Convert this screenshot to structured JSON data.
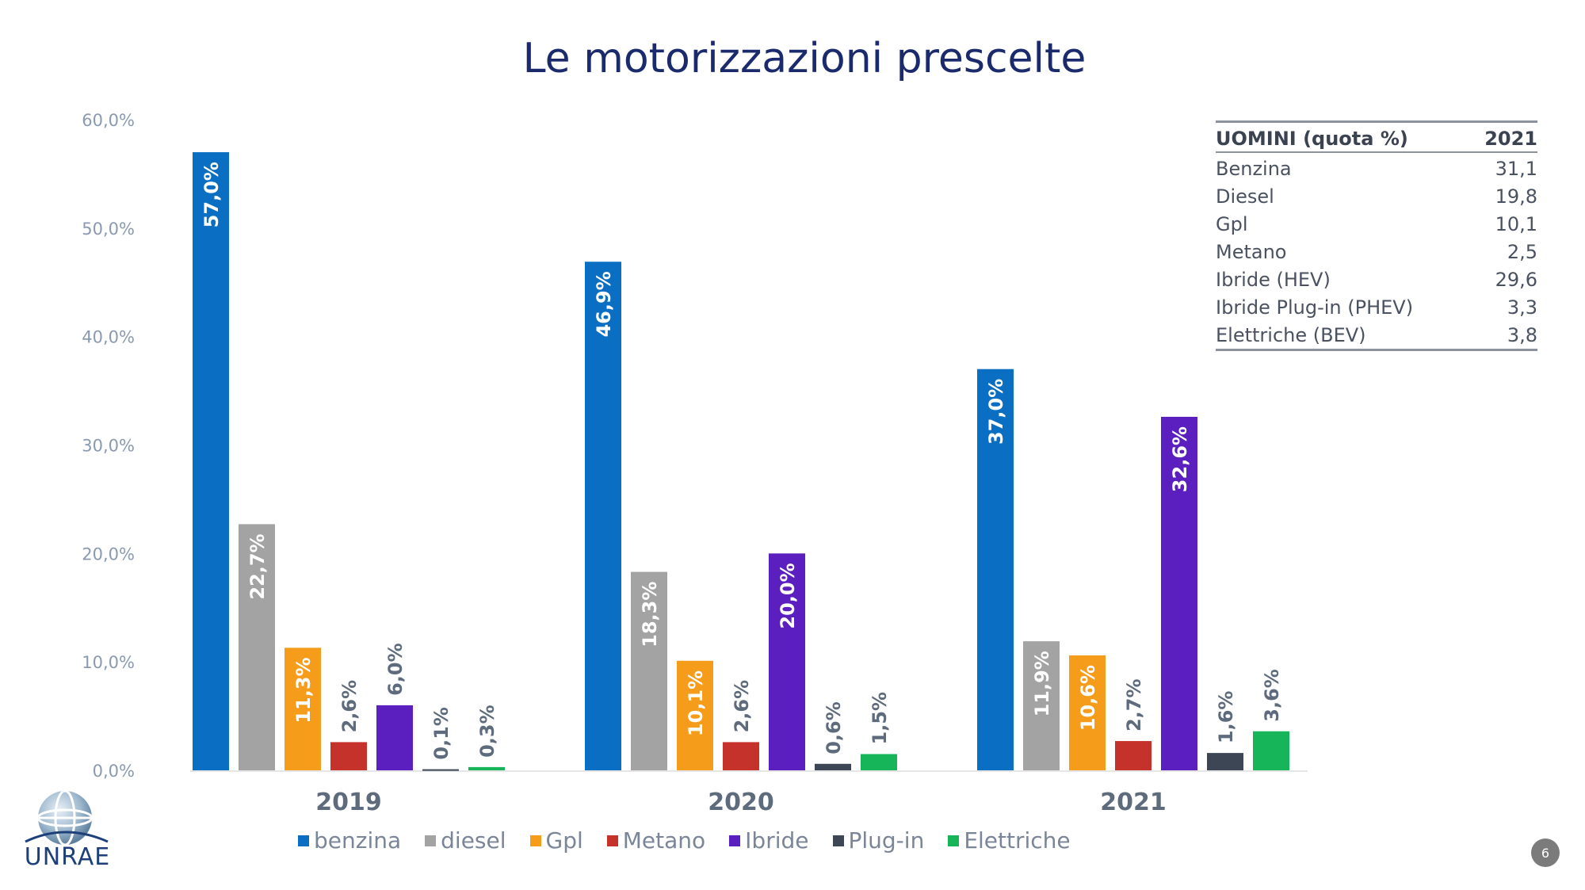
{
  "chart_data": {
    "type": "bar",
    "title": "Le motorizzazioni prescelte",
    "categories": [
      "2019",
      "2020",
      "2021"
    ],
    "ylim": [
      0,
      60
    ],
    "yticks": [
      "0,0%",
      "10,0%",
      "20,0%",
      "30,0%",
      "40,0%",
      "50,0%",
      "60,0%"
    ],
    "legend_position": "bottom",
    "grid": false,
    "series": [
      {
        "name": "benzina",
        "color": "#0a6fc2",
        "values": [
          57.0,
          46.9,
          37.0
        ],
        "labels": [
          "57,0%",
          "46,9%",
          "37,0%"
        ]
      },
      {
        "name": "diesel",
        "color": "#a3a3a3",
        "values": [
          22.7,
          18.3,
          11.9
        ],
        "labels": [
          "22,7%",
          "18,3%",
          "11,9%"
        ]
      },
      {
        "name": "Gpl",
        "color": "#f59c1a",
        "values": [
          11.3,
          10.1,
          10.6
        ],
        "labels": [
          "11,3%",
          "10,1%",
          "10,6%"
        ]
      },
      {
        "name": "Metano",
        "color": "#c4322b",
        "values": [
          2.6,
          2.6,
          2.7
        ],
        "labels": [
          "2,6%",
          "2,6%",
          "2,7%"
        ]
      },
      {
        "name": "Ibride",
        "color": "#5b1fbf",
        "values": [
          6.0,
          20.0,
          32.6
        ],
        "labels": [
          "6,0%",
          "20,0%",
          "32,6%"
        ]
      },
      {
        "name": "Plug-in",
        "color": "#3c4654",
        "values": [
          0.1,
          0.6,
          1.6
        ],
        "labels": [
          "0,1%",
          "0,6%",
          "1,6%"
        ]
      },
      {
        "name": "Elettriche",
        "color": "#17b55a",
        "values": [
          0.3,
          1.5,
          3.6
        ],
        "labels": [
          "0,3%",
          "1,5%",
          "3,6%"
        ]
      }
    ]
  },
  "stats_table": {
    "header_label": "UOMINI (quota %)",
    "header_year": "2021",
    "rows": [
      {
        "label": "Benzina",
        "value": "31,1"
      },
      {
        "label": "Diesel",
        "value": "19,8"
      },
      {
        "label": "Gpl",
        "value": "10,1"
      },
      {
        "label": "Metano",
        "value": "2,5"
      },
      {
        "label": "Ibride (HEV)",
        "value": "29,6"
      },
      {
        "label": "Ibride Plug-in (PHEV)",
        "value": "3,3"
      },
      {
        "label": "Elettriche (BEV)",
        "value": "3,8"
      }
    ]
  },
  "logo": {
    "text": "UNRAE"
  },
  "page_number": "6"
}
